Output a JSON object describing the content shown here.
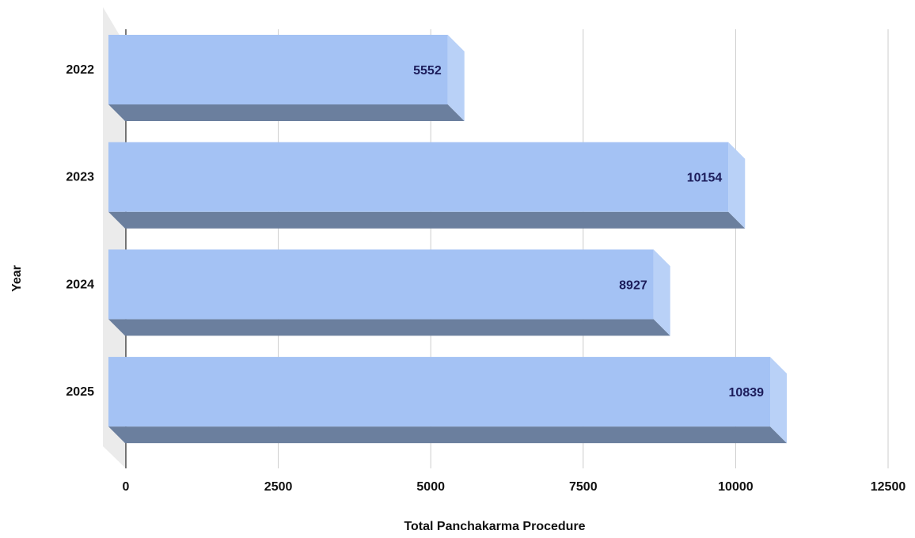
{
  "chart_data": {
    "type": "bar",
    "orientation": "horizontal",
    "style": "3d",
    "categories": [
      "2022",
      "2023",
      "2024",
      "2025"
    ],
    "series": [
      {
        "values": [
          5552,
          10154,
          8927,
          10839
        ]
      }
    ],
    "data_labels": [
      "5552",
      "10154",
      "8927",
      "10839"
    ],
    "xlabel": "Total Panchakarma Procedure",
    "ylabel": "Year",
    "xlim": [
      0,
      12500
    ],
    "x_ticks": [
      0,
      2500,
      5000,
      7500,
      10000,
      12500
    ],
    "x_tick_labels": [
      "0",
      "2500",
      "5000",
      "7500",
      "10000",
      "12500"
    ],
    "grid": true,
    "colors": {
      "bar_front": "#a4c2f4",
      "bar_side": "#b9d1f7",
      "bar_bottom": "#6b7f9e",
      "wall": "#ebebeb",
      "gridline": "#cccccc",
      "data_label": "#1c1c5a",
      "text": "#111111"
    }
  }
}
